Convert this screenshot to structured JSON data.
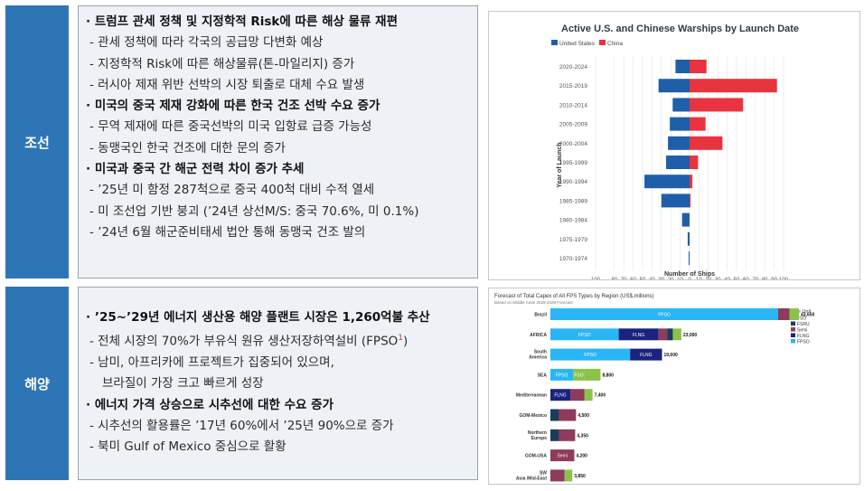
{
  "sections": [
    {
      "category": "조선",
      "lines": [
        {
          "kind": "h",
          "text": "· 트럼프 관세 정책 및 지정학적 Risk에 따른 해상 물류 재편"
        },
        {
          "kind": "s",
          "text": "- 관세 정책에 따라 각국의 공급망 다변화 예상"
        },
        {
          "kind": "s",
          "text": "- 지정학적 Risk에 따른 해상물류(톤-마일리지) 증가"
        },
        {
          "kind": "s",
          "text": "- 러시아 제재 위반 선박의 시장 퇴출로 대체 수요 발생"
        },
        {
          "kind": "h",
          "text": "· 미국의 중국 제재 강화에 따른 한국 건조 선박 수요 증가"
        },
        {
          "kind": "s",
          "text": "- 무역 제재에 따른 중국선박의 미국 입항료 급증 가능성"
        },
        {
          "kind": "s",
          "text": "- 동맹국인 한국 건조에 대한 문의 증가"
        },
        {
          "kind": "h",
          "text": "· 미국과 중국 간 해군 전력 차이 증가 추세"
        },
        {
          "kind": "s",
          "text": "- ’25년 미 함정 287척으로 중국 400척 대비 수적 열세"
        },
        {
          "kind": "s",
          "text": "- 미 조선업 기반 붕괴 (’24년 상선M/S: 중국 70.6%, 미 0.1%)"
        },
        {
          "kind": "s",
          "text": "- ’24년 6월 해군준비태세 법안 통해 동맹국 건조 발의"
        }
      ]
    },
    {
      "category": "해양",
      "lines": [
        {
          "kind": "h",
          "text": "· ’25~’29년 에너지 생산용 해양 플랜트 시장은 1,260억불 추산"
        },
        {
          "kind": "s",
          "text": "- 전체 시장의 70%가 부유식 원유 생산저장하역설비 (FPSO",
          "sup": "1",
          "after": ")"
        },
        {
          "kind": "s",
          "text": "- 남미, 아프리카에 프로젝트가 집중되어 있으며,"
        },
        {
          "kind": "s2",
          "text": "브라질이 가장 크고 빠르게 성장"
        },
        {
          "kind": "h",
          "text": "· 에너지 가격 상승으로 시추선에 대한 수요 증가"
        },
        {
          "kind": "s",
          "text": "- 시추선의 활용률은 ’17년 60%에서 ’25년 90%으로 증가"
        },
        {
          "kind": "s",
          "text": "- 북미 Gulf of Mexico 중심으로 활황"
        }
      ]
    }
  ],
  "chart_data": [
    {
      "type": "bar",
      "orientation": "horizontal-diverging",
      "title": "Active U.S. and Chinese Warships by Launch Date",
      "xlabel": "Number of Ships",
      "ylabel": "Year of Launch",
      "legend_position": "top-left",
      "categories": [
        "2020-2024",
        "2015-2019",
        "2010-2014",
        "2005-2009",
        "2000-2004",
        "1995-1999",
        "1990-1994",
        "1985-1989",
        "1980-1984",
        "1975-1979",
        "1970-1974"
      ],
      "series": [
        {
          "name": "United States",
          "color": "#1f5fa9",
          "side": "left",
          "values": [
            15,
            33,
            18,
            21,
            23,
            25,
            48,
            30,
            8,
            2,
            1
          ]
        },
        {
          "name": "China",
          "color": "#e8343f",
          "side": "right",
          "values": [
            18,
            93,
            57,
            17,
            35,
            9,
            3,
            1,
            0,
            0,
            0
          ]
        }
      ],
      "xticks": [
        "100",
        "80",
        "70",
        "60",
        "50",
        "40",
        "30",
        "20",
        "10",
        "0",
        "10",
        "20",
        "30",
        "40",
        "50",
        "60",
        "70",
        "80",
        "90",
        "100"
      ],
      "xlim": [
        -100,
        100
      ]
    },
    {
      "type": "bar",
      "orientation": "horizontal-stacked",
      "title": "Forecast of Total Capex of All FPS Types by Region (US$,millions)",
      "subtitle": "Based on Middle Case 2025-2029 Forecast",
      "legend_title": "Type Unit",
      "legend_position": "right",
      "types": [
        {
          "name": "FSO",
          "color": "#8bc34a"
        },
        {
          "name": "FSRU",
          "color": "#1b3a5c"
        },
        {
          "name": "Semi",
          "color": "#8e3b5c"
        },
        {
          "name": "FLNG",
          "color": "#1a237e"
        },
        {
          "name": "FPSO",
          "color": "#29b6f6"
        }
      ],
      "categories": [
        "Brazil",
        "AFRICA",
        "South America",
        "SEA",
        "Mediterranean",
        "GOM-Mexico",
        "Northern Europe",
        "GOM-USA",
        "SW Asia /Mid-East"
      ],
      "totals": [
        "43,650",
        "23,000",
        "19,600",
        "8,800",
        "7,400",
        "4,500",
        "4,350",
        "4,200",
        "3,850"
      ],
      "segments": [
        [
          {
            "type": "FPSO",
            "value": 40000,
            "label": "FPSO"
          },
          {
            "type": "Semi",
            "value": 2000
          },
          {
            "type": "FSO",
            "value": 1650
          }
        ],
        [
          {
            "type": "FPSO",
            "value": 12000,
            "label": "FPSO"
          },
          {
            "type": "FLNG",
            "value": 7000,
            "label": "FLNG"
          },
          {
            "type": "Semi",
            "value": 1500
          },
          {
            "type": "FSRU",
            "value": 1000
          },
          {
            "type": "FSO",
            "value": 1500
          }
        ],
        [
          {
            "type": "FPSO",
            "value": 14000,
            "label": "FPSO"
          },
          {
            "type": "FLNG",
            "value": 5600,
            "label": "FLNG"
          }
        ],
        [
          {
            "type": "FPSO",
            "value": 4000,
            "label": "FPSO"
          },
          {
            "type": "FSO",
            "value": 2000,
            "label": "FSO"
          },
          {
            "type": "FSO",
            "value": 2800
          }
        ],
        [
          {
            "type": "FLNG",
            "value": 3500,
            "label": "FLNG"
          },
          {
            "type": "Semi",
            "value": 2500
          },
          {
            "type": "FSO",
            "value": 1400
          }
        ],
        [
          {
            "type": "FSRU",
            "value": 1500
          },
          {
            "type": "Semi",
            "value": 3000
          }
        ],
        [
          {
            "type": "FSRU",
            "value": 1500
          },
          {
            "type": "Semi",
            "value": 2850
          }
        ],
        [
          {
            "type": "Semi",
            "value": 4200,
            "label": "Semi"
          }
        ],
        [
          {
            "type": "Semi",
            "value": 2500
          },
          {
            "type": "FSO",
            "value": 1350
          }
        ]
      ]
    }
  ]
}
